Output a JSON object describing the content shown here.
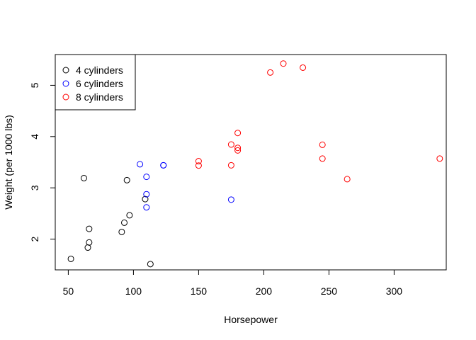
{
  "chart_data": {
    "type": "scatter",
    "title": "",
    "xlabel": "Horsepower",
    "ylabel": "Weight (per 1000 lbs)",
    "xlim": [
      40,
      340
    ],
    "ylim": [
      1.4,
      5.6
    ],
    "xticks": [
      50,
      100,
      150,
      200,
      250,
      300
    ],
    "yticks": [
      2,
      3,
      4,
      5
    ],
    "legend_position": "top-left",
    "series": [
      {
        "name": "4 cylinders",
        "color": "#000000",
        "points": [
          [
            52,
            1.615
          ],
          [
            62,
            3.19
          ],
          [
            65,
            1.835
          ],
          [
            66,
            2.2
          ],
          [
            66,
            1.935
          ],
          [
            91,
            2.14
          ],
          [
            93,
            2.32
          ],
          [
            95,
            3.15
          ],
          [
            97,
            2.465
          ],
          [
            109,
            2.78
          ],
          [
            113,
            1.513
          ]
        ]
      },
      {
        "name": "6 cylinders",
        "color": "#0000ff",
        "points": [
          [
            105,
            3.46
          ],
          [
            110,
            2.62
          ],
          [
            110,
            2.875
          ],
          [
            110,
            3.215
          ],
          [
            123,
            3.44
          ],
          [
            123,
            3.44
          ],
          [
            175,
            2.77
          ]
        ]
      },
      {
        "name": "8 cylinders",
        "color": "#ff0000",
        "points": [
          [
            150,
            3.52
          ],
          [
            150,
            3.435
          ],
          [
            175,
            3.44
          ],
          [
            175,
            3.845
          ],
          [
            180,
            4.07
          ],
          [
            180,
            3.73
          ],
          [
            180,
            3.78
          ],
          [
            205,
            5.25
          ],
          [
            215,
            5.424
          ],
          [
            230,
            5.345
          ],
          [
            245,
            3.57
          ],
          [
            245,
            3.84
          ],
          [
            264,
            3.17
          ],
          [
            335,
            3.57
          ]
        ]
      }
    ]
  }
}
